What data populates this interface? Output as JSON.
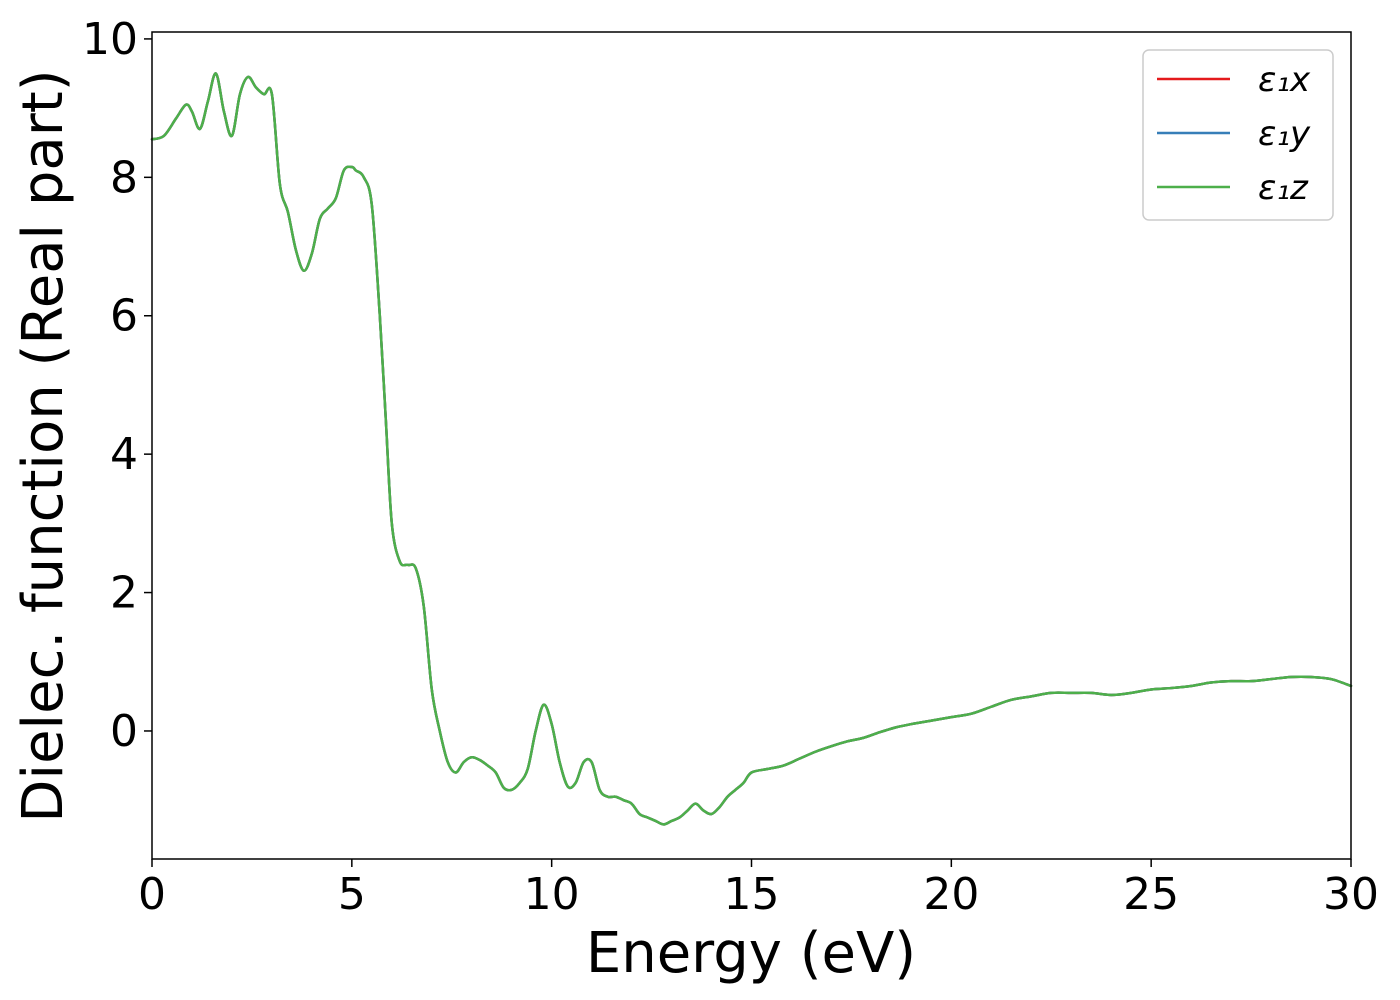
{
  "chart_data": {
    "type": "line",
    "title": "",
    "xlabel": "Energy (eV)",
    "ylabel": "Dielec. function (Real part)",
    "xlim": [
      0,
      30
    ],
    "ylim": [
      -1.85,
      10.1
    ],
    "xticks": [
      0,
      5,
      10,
      15,
      20,
      25,
      30
    ],
    "yticks": [
      0,
      2,
      4,
      6,
      8,
      10
    ],
    "grid": false,
    "legend_position": "top-right",
    "x": [
      0,
      0.3,
      0.6,
      0.85,
      1.0,
      1.2,
      1.4,
      1.6,
      1.8,
      2.0,
      2.2,
      2.4,
      2.6,
      2.8,
      3.0,
      3.2,
      3.4,
      3.6,
      3.8,
      4.0,
      4.2,
      4.4,
      4.6,
      4.8,
      5.0,
      5.1,
      5.3,
      5.5,
      5.7,
      5.85,
      6.0,
      6.2,
      6.4,
      6.6,
      6.8,
      7.0,
      7.2,
      7.4,
      7.6,
      7.8,
      8.0,
      8.2,
      8.4,
      8.6,
      8.8,
      9.0,
      9.2,
      9.4,
      9.6,
      9.8,
      10.0,
      10.2,
      10.4,
      10.6,
      10.8,
      11.0,
      11.2,
      11.4,
      11.6,
      11.8,
      12.0,
      12.2,
      12.4,
      12.6,
      12.8,
      13.0,
      13.2,
      13.4,
      13.6,
      13.8,
      14.0,
      14.2,
      14.4,
      14.6,
      14.8,
      15.0,
      15.4,
      15.8,
      16.2,
      16.6,
      17.0,
      17.4,
      17.8,
      18.2,
      18.6,
      19.0,
      19.5,
      20.0,
      20.5,
      21.0,
      21.5,
      22.0,
      22.5,
      23.0,
      23.5,
      24.0,
      24.5,
      25.0,
      25.5,
      26.0,
      26.5,
      27.0,
      27.5,
      28.0,
      28.5,
      29.0,
      29.5,
      30.0
    ],
    "series": [
      {
        "name": "ε₁x",
        "color": "#e41a1c",
        "values": [
          8.55,
          8.6,
          8.85,
          9.05,
          8.95,
          8.7,
          9.1,
          9.5,
          8.95,
          8.6,
          9.2,
          9.45,
          9.3,
          9.2,
          9.2,
          7.9,
          7.5,
          6.95,
          6.65,
          6.9,
          7.4,
          7.55,
          7.7,
          8.1,
          8.15,
          8.1,
          8.0,
          7.6,
          6.0,
          4.5,
          3.0,
          2.45,
          2.4,
          2.35,
          1.8,
          0.6,
          0.0,
          -0.45,
          -0.6,
          -0.45,
          -0.38,
          -0.42,
          -0.5,
          -0.6,
          -0.82,
          -0.85,
          -0.75,
          -0.55,
          0.0,
          0.38,
          0.1,
          -0.45,
          -0.8,
          -0.75,
          -0.45,
          -0.45,
          -0.85,
          -0.95,
          -0.95,
          -1.0,
          -1.05,
          -1.2,
          -1.25,
          -1.3,
          -1.35,
          -1.3,
          -1.25,
          -1.15,
          -1.05,
          -1.15,
          -1.2,
          -1.1,
          -0.95,
          -0.85,
          -0.75,
          -0.6,
          -0.55,
          -0.5,
          -0.4,
          -0.3,
          -0.22,
          -0.15,
          -0.1,
          -0.02,
          0.05,
          0.1,
          0.15,
          0.2,
          0.25,
          0.35,
          0.45,
          0.5,
          0.55,
          0.55,
          0.55,
          0.52,
          0.55,
          0.6,
          0.62,
          0.65,
          0.7,
          0.72,
          0.72,
          0.75,
          0.78,
          0.78,
          0.75,
          0.65
        ]
      },
      {
        "name": "ε₁y",
        "color": "#377eb8",
        "values": [
          8.55,
          8.6,
          8.85,
          9.05,
          8.95,
          8.7,
          9.1,
          9.5,
          8.95,
          8.6,
          9.2,
          9.45,
          9.3,
          9.2,
          9.2,
          7.9,
          7.5,
          6.95,
          6.65,
          6.9,
          7.4,
          7.55,
          7.7,
          8.1,
          8.15,
          8.1,
          8.0,
          7.6,
          6.0,
          4.5,
          3.0,
          2.45,
          2.4,
          2.35,
          1.8,
          0.6,
          0.0,
          -0.45,
          -0.6,
          -0.45,
          -0.38,
          -0.42,
          -0.5,
          -0.6,
          -0.82,
          -0.85,
          -0.75,
          -0.55,
          0.0,
          0.38,
          0.1,
          -0.45,
          -0.8,
          -0.75,
          -0.45,
          -0.45,
          -0.85,
          -0.95,
          -0.95,
          -1.0,
          -1.05,
          -1.2,
          -1.25,
          -1.3,
          -1.35,
          -1.3,
          -1.25,
          -1.15,
          -1.05,
          -1.15,
          -1.2,
          -1.1,
          -0.95,
          -0.85,
          -0.75,
          -0.6,
          -0.55,
          -0.5,
          -0.4,
          -0.3,
          -0.22,
          -0.15,
          -0.1,
          -0.02,
          0.05,
          0.1,
          0.15,
          0.2,
          0.25,
          0.35,
          0.45,
          0.5,
          0.55,
          0.55,
          0.55,
          0.52,
          0.55,
          0.6,
          0.62,
          0.65,
          0.7,
          0.72,
          0.72,
          0.75,
          0.78,
          0.78,
          0.75,
          0.65
        ]
      },
      {
        "name": "ε₁z",
        "color": "#4daf4a",
        "values": [
          8.55,
          8.6,
          8.85,
          9.05,
          8.95,
          8.7,
          9.1,
          9.5,
          8.95,
          8.6,
          9.2,
          9.45,
          9.3,
          9.2,
          9.2,
          7.9,
          7.5,
          6.95,
          6.65,
          6.9,
          7.4,
          7.55,
          7.7,
          8.1,
          8.15,
          8.1,
          8.0,
          7.6,
          6.0,
          4.5,
          3.0,
          2.45,
          2.4,
          2.35,
          1.8,
          0.6,
          0.0,
          -0.45,
          -0.6,
          -0.45,
          -0.38,
          -0.42,
          -0.5,
          -0.6,
          -0.82,
          -0.85,
          -0.75,
          -0.55,
          0.0,
          0.38,
          0.1,
          -0.45,
          -0.8,
          -0.75,
          -0.45,
          -0.45,
          -0.85,
          -0.95,
          -0.95,
          -1.0,
          -1.05,
          -1.2,
          -1.25,
          -1.3,
          -1.35,
          -1.3,
          -1.25,
          -1.15,
          -1.05,
          -1.15,
          -1.2,
          -1.1,
          -0.95,
          -0.85,
          -0.75,
          -0.6,
          -0.55,
          -0.5,
          -0.4,
          -0.3,
          -0.22,
          -0.15,
          -0.1,
          -0.02,
          0.05,
          0.1,
          0.15,
          0.2,
          0.25,
          0.35,
          0.45,
          0.5,
          0.55,
          0.55,
          0.55,
          0.52,
          0.55,
          0.6,
          0.62,
          0.65,
          0.7,
          0.72,
          0.72,
          0.75,
          0.78,
          0.78,
          0.75,
          0.65
        ]
      }
    ]
  }
}
